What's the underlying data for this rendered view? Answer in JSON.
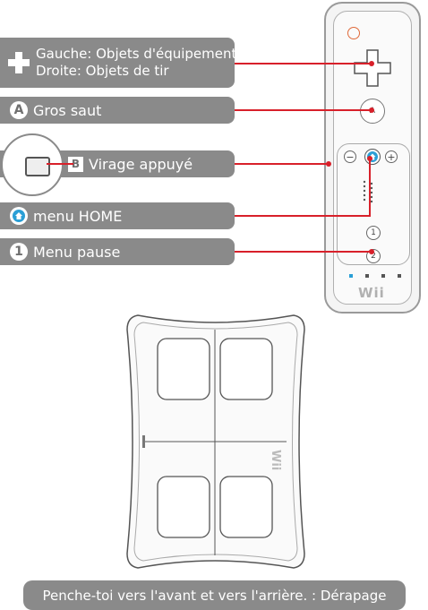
{
  "labels": {
    "dpad_line1": "Gauche: Objets d'équipement",
    "dpad_line2": "Droite: Objets de tir",
    "a_button": "Gros saut",
    "a_icon": "A",
    "b_button": "Virage appuyé",
    "b_icon": "B",
    "home_button": "menu HOME",
    "one_button": "Menu pause",
    "one_icon": "1"
  },
  "remote": {
    "a_label": "A",
    "minus": "−",
    "plus": "+",
    "one": "1",
    "two": "2",
    "brand": "Wii"
  },
  "board": {
    "brand": "Wii"
  },
  "footer": {
    "instruction": "Penche-toi vers l'avant et vers l'arrière. : Dérapage"
  },
  "colors": {
    "pill": "#8a8a8a",
    "pointer": "#d8202a",
    "home_blue": "#2a9fd6"
  }
}
